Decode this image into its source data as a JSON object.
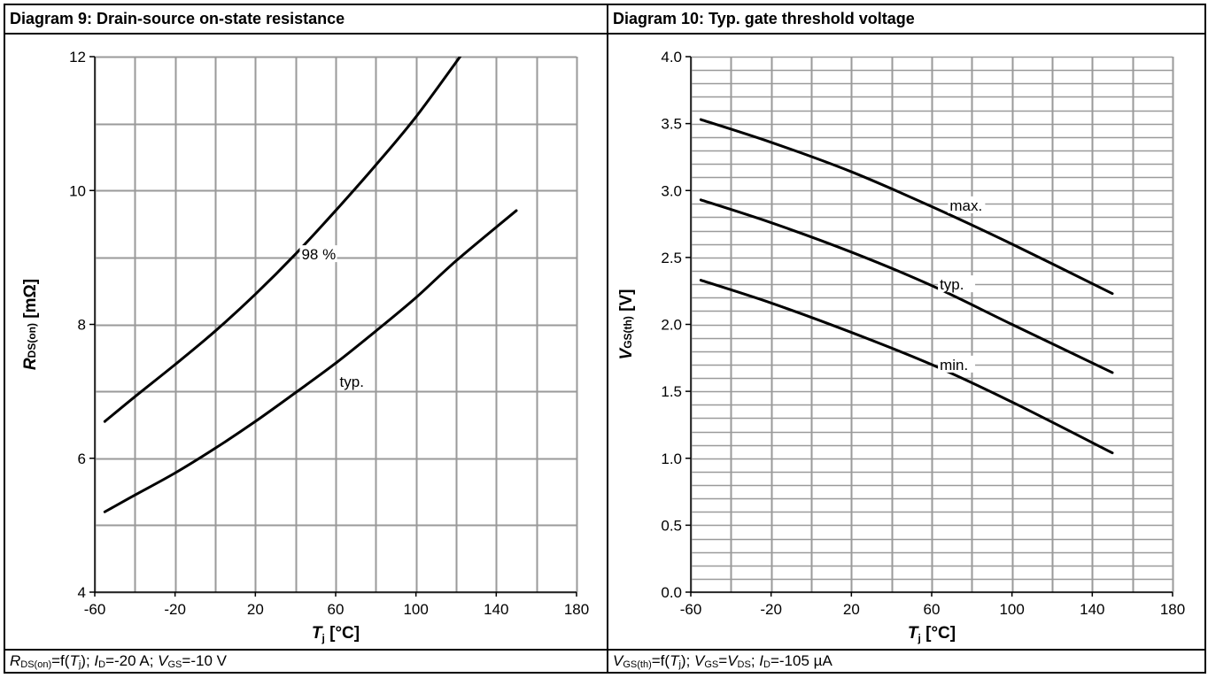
{
  "chart_data": [
    {
      "type": "line",
      "title": "Diagram 9: Drain-source on-state resistance",
      "ylabel": {
        "main": "R",
        "sub": "DS(on)",
        "unit": " [mΩ]"
      },
      "xlabel": {
        "main": "T",
        "sub": "j",
        "unit": " [°C]"
      },
      "xlim": [
        -60,
        180
      ],
      "ylim": [
        4,
        12
      ],
      "x_ticks": [
        -60,
        -20,
        20,
        60,
        100,
        140,
        180
      ],
      "y_ticks": [
        4,
        6,
        8,
        10,
        12
      ],
      "x_grid_step": 20,
      "y_grid_step": 1,
      "grid": true,
      "series": [
        {
          "name": "98 %",
          "x": [
            -55,
            -40,
            -20,
            0,
            20,
            40,
            60,
            80,
            100,
            122
          ],
          "y": [
            6.55,
            6.92,
            7.4,
            7.9,
            8.45,
            9.05,
            9.7,
            10.38,
            11.1,
            12.0
          ]
        },
        {
          "name": "typ.",
          "x": [
            -55,
            -40,
            -20,
            0,
            20,
            40,
            60,
            80,
            100,
            120,
            150
          ],
          "y": [
            5.2,
            5.45,
            5.78,
            6.15,
            6.55,
            6.98,
            7.42,
            7.9,
            8.4,
            8.95,
            9.7
          ]
        }
      ],
      "annotations": [
        {
          "text": "98 %",
          "x": 43,
          "y": 9.05
        },
        {
          "text": "typ.",
          "x": 62,
          "y": 7.15
        }
      ],
      "caption": {
        "p1": "R",
        "p1s": "DS(on)",
        "p2": "=f(",
        "p3": "T",
        "p3s": "j",
        "p4": "); ",
        "p5": "I",
        "p5s": "D",
        "p6": "=-20 A; ",
        "p7": "V",
        "p7s": "GS",
        "p8": "=-10 V"
      }
    },
    {
      "type": "line",
      "title": "Diagram 10: Typ. gate threshold voltage",
      "ylabel": {
        "main": "V",
        "sub": "GS(th)",
        "unit": " [V]"
      },
      "xlabel": {
        "main": "T",
        "sub": "j",
        "unit": " [°C]"
      },
      "xlim": [
        -60,
        180
      ],
      "ylim": [
        0,
        4
      ],
      "x_ticks": [
        -60,
        -20,
        20,
        60,
        100,
        140,
        180
      ],
      "y_ticks": [
        "0.0",
        "0.5",
        "1.0",
        "1.5",
        "2.0",
        "2.5",
        "3.0",
        "3.5",
        "4.0"
      ],
      "x_grid_step": 20,
      "y_grid_step": 0.1,
      "grid": true,
      "series": [
        {
          "name": "max.",
          "x": [
            -55,
            -20,
            20,
            60,
            100,
            150
          ],
          "y": [
            3.53,
            3.36,
            3.14,
            2.88,
            2.6,
            2.23
          ]
        },
        {
          "name": "typ.",
          "x": [
            -55,
            -20,
            20,
            60,
            100,
            150
          ],
          "y": [
            2.93,
            2.76,
            2.54,
            2.29,
            2.0,
            1.64
          ]
        },
        {
          "name": "min.",
          "x": [
            -55,
            -20,
            20,
            60,
            100,
            150
          ],
          "y": [
            2.33,
            2.16,
            1.94,
            1.7,
            1.42,
            1.04
          ]
        }
      ],
      "annotations": [
        {
          "text": "max.",
          "x": 69,
          "y": 2.89
        },
        {
          "text": "typ.",
          "x": 64,
          "y": 2.3
        },
        {
          "text": "min.",
          "x": 64,
          "y": 1.7
        }
      ],
      "caption": {
        "p1": "V",
        "p1s": "GS(th)",
        "p2": "=f(",
        "p3": "T",
        "p3s": "j",
        "p4": "); ",
        "p5": "V",
        "p5s": "GS",
        "p6": "=",
        "p7": "V",
        "p7s": "DS",
        "p8": "; ",
        "p9": "I",
        "p9s": "D",
        "p10": "=-105 µA"
      }
    }
  ]
}
